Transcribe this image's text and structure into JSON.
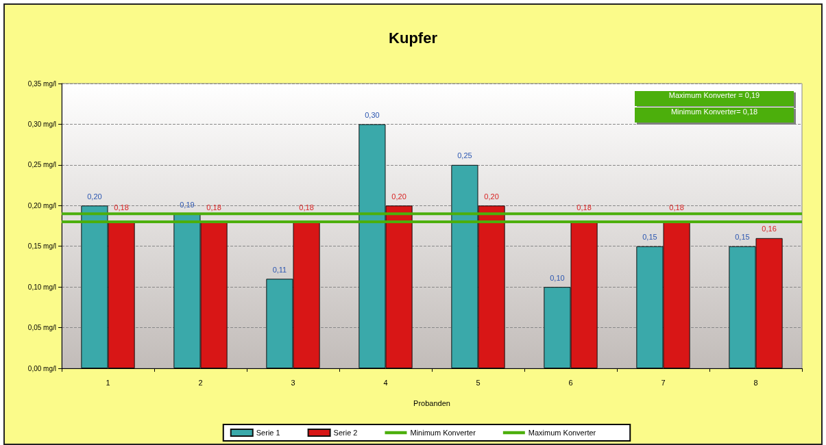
{
  "chart_data": {
    "type": "bar",
    "title": "Kupfer",
    "xlabel": "Probanden",
    "categories": [
      "1",
      "2",
      "3",
      "4",
      "5",
      "6",
      "7",
      "8"
    ],
    "series": [
      {
        "name": "Serie 1",
        "color": "#3aa9aa",
        "values": [
          0.2,
          0.19,
          0.11,
          0.3,
          0.25,
          0.1,
          0.15,
          0.15
        ],
        "value_labels": [
          "0,20",
          "0,19",
          "0,11",
          "0,30",
          "0,25",
          "0,10",
          "0,15",
          "0,15"
        ]
      },
      {
        "name": "Serie 2",
        "color": "#d81616",
        "values": [
          0.18,
          0.18,
          0.18,
          0.2,
          0.2,
          0.18,
          0.18,
          0.16
        ],
        "value_labels": [
          "0,18",
          "0,18",
          "0,18",
          "0,20",
          "0,20",
          "0,18",
          "0,18",
          "0,16"
        ]
      }
    ],
    "ref_lines": [
      {
        "axis": "y",
        "value": 0.18,
        "label": "Minimum Konverter",
        "color": "#4caf0c"
      },
      {
        "axis": "y",
        "value": 0.19,
        "label": "Maximum Konverter",
        "color": "#4caf0c"
      }
    ],
    "annotations": [
      "Maximum Konverter = 0,19",
      "Minimum Konverter= 0,18"
    ],
    "ylim": [
      0,
      0.35
    ],
    "yticks": [
      {
        "value": 0,
        "label": "0,00 mg/l"
      },
      {
        "value": 0.05,
        "label": "0,05 mg/l"
      },
      {
        "value": 0.1,
        "label": "0,10 mg/l"
      },
      {
        "value": 0.15,
        "label": "0,15 mg/l"
      },
      {
        "value": 0.2,
        "label": "0,20 mg/l"
      },
      {
        "value": 0.25,
        "label": "0,25 mg/l"
      },
      {
        "value": 0.3,
        "label": "0,30 mg/l"
      },
      {
        "value": 0.35,
        "label": "0,35 mg/l"
      }
    ],
    "grid": "y",
    "legend": "bottom"
  }
}
